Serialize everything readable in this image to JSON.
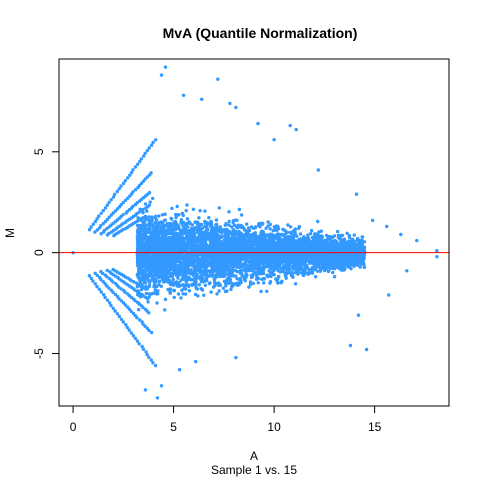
{
  "chart_data": {
    "type": "scatter",
    "title": "MvA (Quantile Normalization)",
    "xlabel": "A",
    "ylabel": "M",
    "sub_label": "Sample 1 vs. 15",
    "xlim": [
      -0.7,
      18.7
    ],
    "ylim": [
      -7.6,
      9.6
    ],
    "x_ticks": [
      0,
      5,
      10,
      15
    ],
    "x_tick_labels": [
      "0",
      "5",
      "10",
      "15"
    ],
    "y_ticks": [
      -5,
      0,
      5
    ],
    "y_tick_labels": [
      "-5",
      "0",
      "5"
    ],
    "point_color": "#3399ff",
    "reference_line": {
      "y": 0,
      "color": "#ff0000"
    },
    "grid": false,
    "legend": "none",
    "bands": [
      {
        "a_start": 0.8,
        "a_end": 4.2,
        "slope": 1.35
      },
      {
        "a_start": 1.1,
        "a_end": 4.0,
        "slope": 1.05
      },
      {
        "a_start": 1.4,
        "a_end": 3.9,
        "slope": 0.85
      },
      {
        "a_start": 1.7,
        "a_end": 3.8,
        "slope": 0.7
      },
      {
        "a_start": 2.0,
        "a_end": 3.7,
        "slope": 0.6
      }
    ],
    "core": {
      "a_min": 3.2,
      "a_max": 14.5,
      "count": 5200
    },
    "outliers": [
      {
        "a": 4.6,
        "m": 9.2
      },
      {
        "a": 4.4,
        "m": 8.8
      },
      {
        "a": 7.2,
        "m": 8.6
      },
      {
        "a": 5.5,
        "m": 7.8
      },
      {
        "a": 6.4,
        "m": 7.6
      },
      {
        "a": 7.8,
        "m": 7.4
      },
      {
        "a": 8.1,
        "m": 7.2
      },
      {
        "a": 9.2,
        "m": 6.4
      },
      {
        "a": 10.8,
        "m": 6.3
      },
      {
        "a": 11.1,
        "m": 6.1
      },
      {
        "a": 10.0,
        "m": 5.6
      },
      {
        "a": 12.2,
        "m": 4.1
      },
      {
        "a": 14.1,
        "m": 2.9
      },
      {
        "a": 14.9,
        "m": 1.6
      },
      {
        "a": 15.6,
        "m": 1.3
      },
      {
        "a": 16.3,
        "m": 0.9
      },
      {
        "a": 17.1,
        "m": 0.6
      },
      {
        "a": 18.1,
        "m": 0.1
      },
      {
        "a": 18.1,
        "m": -0.2
      },
      {
        "a": 16.6,
        "m": -0.9
      },
      {
        "a": 15.7,
        "m": -2.1
      },
      {
        "a": 14.2,
        "m": -3.1
      },
      {
        "a": 14.6,
        "m": -4.8
      },
      {
        "a": 13.8,
        "m": -4.6
      },
      {
        "a": 8.1,
        "m": -5.2
      },
      {
        "a": 6.1,
        "m": -5.4
      },
      {
        "a": 5.3,
        "m": -5.8
      },
      {
        "a": 4.4,
        "m": -6.6
      },
      {
        "a": 3.6,
        "m": -6.8
      },
      {
        "a": 4.2,
        "m": -7.2
      },
      {
        "a": 0.0,
        "m": 0.0
      }
    ]
  }
}
